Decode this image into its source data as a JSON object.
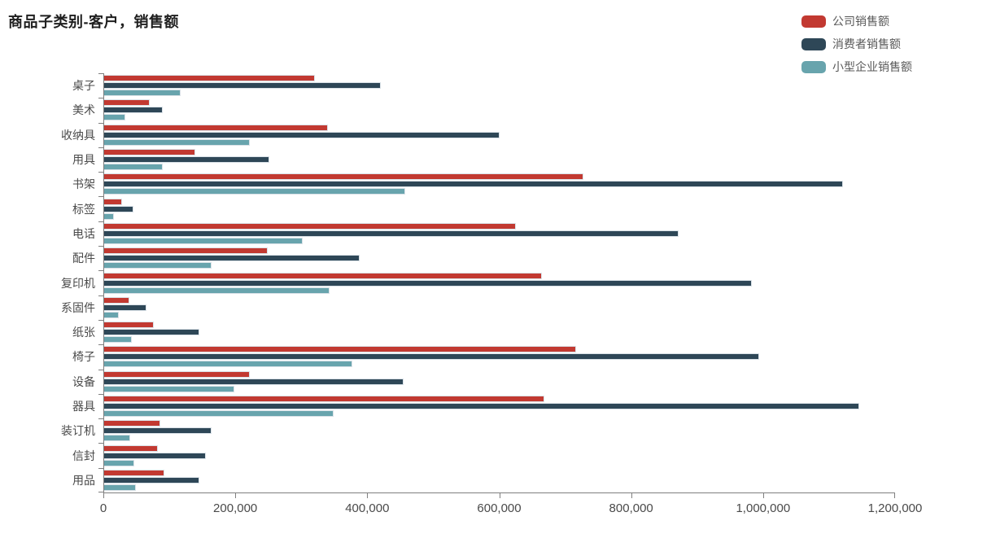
{
  "title": "商品子类别-客户，销售额",
  "chart_data": {
    "type": "bar",
    "orientation": "horizontal",
    "title": "商品子类别-客户，销售额",
    "legend_position": "top-right",
    "grid": false,
    "xlabel": "",
    "ylabel": "",
    "xlim": [
      0,
      1200000
    ],
    "x_tick_labels": [
      "0",
      "200,000",
      "400,000",
      "600,000",
      "800,000",
      "1,000,000",
      "1,200,000"
    ],
    "x_tick_values": [
      0,
      200000,
      400000,
      600000,
      800000,
      1000000,
      1200000
    ],
    "categories": [
      "桌子",
      "美术",
      "收纳具",
      "用具",
      "书架",
      "标签",
      "电话",
      "配件",
      "复印机",
      "系固件",
      "纸张",
      "椅子",
      "设备",
      "器具",
      "装订机",
      "信封",
      "用品"
    ],
    "series": [
      {
        "name": "公司销售额",
        "color": "#c23931",
        "values": [
          321000,
          70000,
          340000,
          139000,
          728000,
          28000,
          625000,
          249000,
          665000,
          39000,
          76000,
          717000,
          222000,
          669000,
          86000,
          83000,
          92000
        ]
      },
      {
        "name": "消费者销售额",
        "color": "#2e4757",
        "values": [
          420000,
          90000,
          600000,
          252000,
          1121000,
          46000,
          872000,
          388000,
          983000,
          65000,
          145000,
          994000,
          455000,
          1146000,
          164000,
          156000,
          146000
        ]
      },
      {
        "name": "小型企业销售额",
        "color": "#68a4ad",
        "values": [
          117000,
          33000,
          222000,
          90000,
          458000,
          16000,
          302000,
          164000,
          343000,
          23000,
          43000,
          377000,
          199000,
          349000,
          41000,
          47000,
          49000
        ]
      }
    ]
  }
}
